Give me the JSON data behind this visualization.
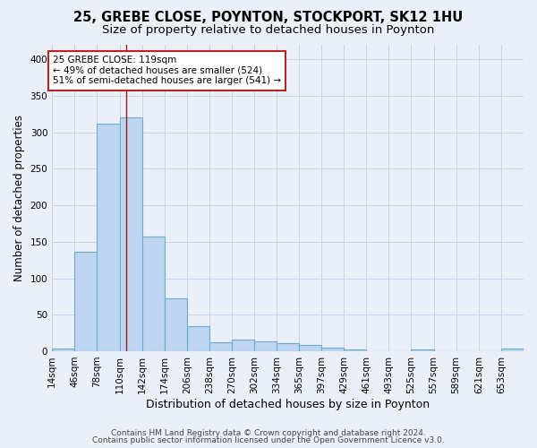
{
  "title1": "25, GREBE CLOSE, POYNTON, STOCKPORT, SK12 1HU",
  "title2": "Size of property relative to detached houses in Poynton",
  "xlabel": "Distribution of detached houses by size in Poynton",
  "ylabel": "Number of detached properties",
  "bin_edges": [
    14,
    46,
    78,
    110,
    142,
    174,
    206,
    238,
    270,
    302,
    334,
    365,
    397,
    429,
    461,
    493,
    525,
    557,
    589,
    621,
    653,
    685
  ],
  "bin_labels": [
    "14sqm",
    "46sqm",
    "78sqm",
    "110sqm",
    "142sqm",
    "174sqm",
    "206sqm",
    "238sqm",
    "270sqm",
    "302sqm",
    "334sqm",
    "365sqm",
    "397sqm",
    "429sqm",
    "461sqm",
    "493sqm",
    "525sqm",
    "557sqm",
    "589sqm",
    "621sqm",
    "653sqm"
  ],
  "counts": [
    4,
    136,
    312,
    320,
    157,
    72,
    34,
    12,
    16,
    13,
    11,
    8,
    5,
    3,
    0,
    0,
    3,
    0,
    0,
    0,
    4
  ],
  "bar_color": "#BDD5EE",
  "bar_edge_color": "#6AAAD4",
  "vline_x": 119,
  "vline_color": "#9B1B1B",
  "annotation_line1": "25 GREBE CLOSE: 119sqm",
  "annotation_line2": "← 49% of detached houses are smaller (524)",
  "annotation_line3": "51% of semi-detached houses are larger (541) →",
  "annotation_box_color": "white",
  "annotation_box_edge_color": "#BB2222",
  "grid_color": "#C8D4E8",
  "background_color": "#EBF0F8",
  "ylim": [
    0,
    420
  ],
  "yticks": [
    0,
    50,
    100,
    150,
    200,
    250,
    300,
    350,
    400
  ],
  "footer1": "Contains HM Land Registry data © Crown copyright and database right 2024.",
  "footer2": "Contains public sector information licensed under the Open Government Licence v3.0.",
  "title1_fontsize": 10.5,
  "title2_fontsize": 9.5,
  "xlabel_fontsize": 9,
  "ylabel_fontsize": 8.5,
  "tick_fontsize": 7.5,
  "annot_fontsize": 7.5,
  "footer_fontsize": 6.5
}
